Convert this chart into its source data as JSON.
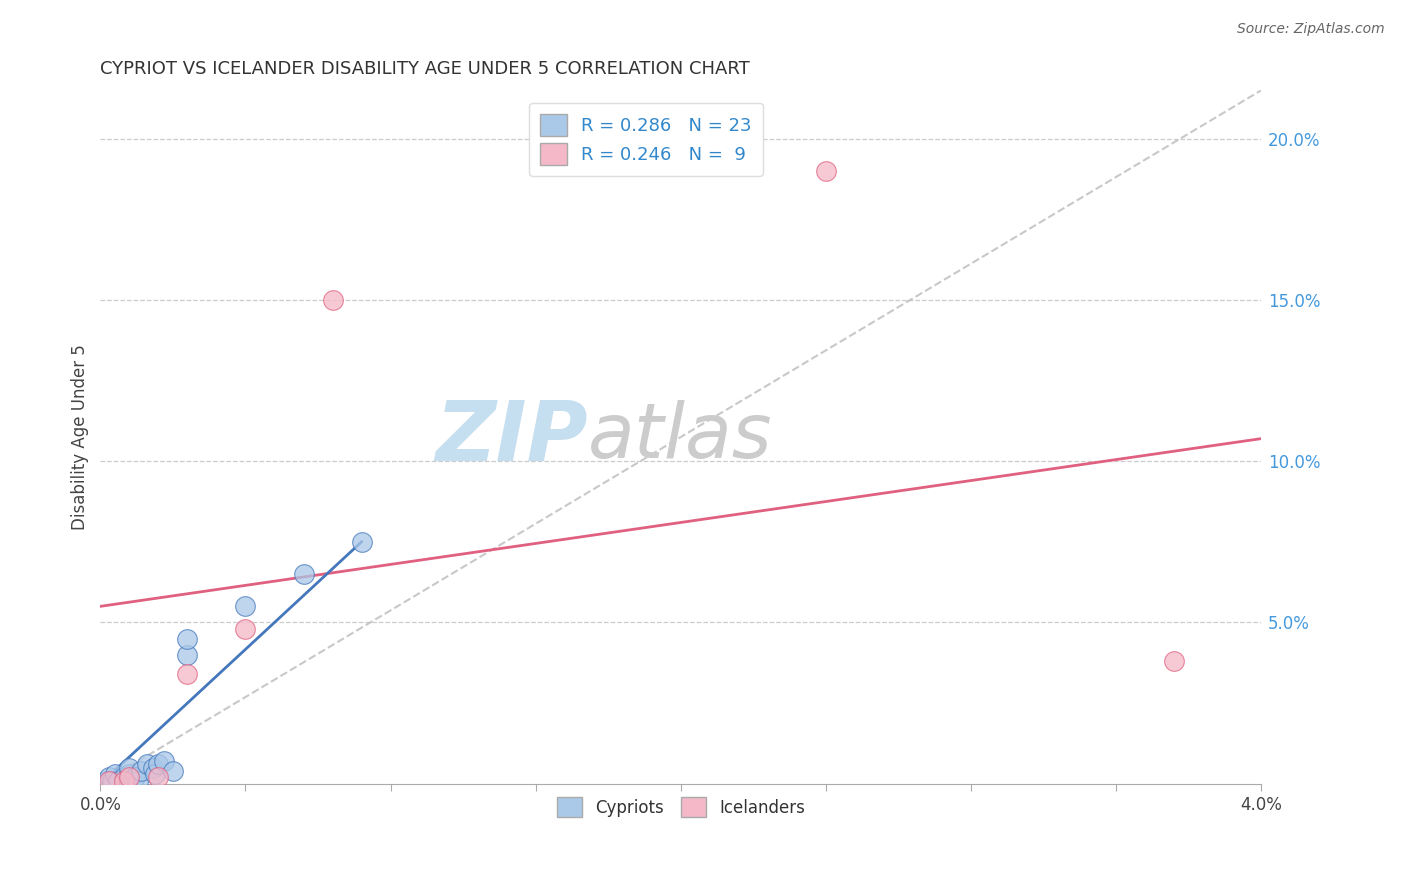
{
  "title": "CYPRIOT VS ICELANDER DISABILITY AGE UNDER 5 CORRELATION CHART",
  "source": "Source: ZipAtlas.com",
  "ylabel": "Disability Age Under 5",
  "y_ticks": [
    0.05,
    0.1,
    0.15,
    0.2
  ],
  "y_tick_labels": [
    "5.0%",
    "10.0%",
    "15.0%",
    "20.0%"
  ],
  "xmin": 0.0,
  "xmax": 0.04,
  "ymin": 0.0,
  "ymax": 0.215,
  "r_cypriot": 0.286,
  "n_cypriot": 23,
  "r_icelander": 0.246,
  "n_icelander": 9,
  "cypriot_color": "#aac8e8",
  "icelander_color": "#f5b8c8",
  "cypriot_line_color": "#4477bb",
  "icelander_line_color": "#e06080",
  "ref_line_color": "#bbbbbb",
  "watermark_zip_color": "#c8dff0",
  "watermark_atlas_color": "#c8c8c8",
  "legend_label_cypriot": "Cypriots",
  "legend_label_icelander": "Icelanders",
  "cypriot_x": [
    0.0002,
    0.0003,
    0.0004,
    0.0005,
    0.0006,
    0.0008,
    0.001,
    0.001,
    0.001,
    0.0012,
    0.0013,
    0.0014,
    0.0016,
    0.0018,
    0.0019,
    0.002,
    0.0022,
    0.0025,
    0.003,
    0.003,
    0.005,
    0.007,
    0.009
  ],
  "cypriot_y": [
    0.001,
    0.002,
    0.001,
    0.003,
    0.001,
    0.002,
    0.001,
    0.003,
    0.005,
    0.002,
    0.001,
    0.004,
    0.006,
    0.005,
    0.003,
    0.006,
    0.007,
    0.004,
    0.04,
    0.045,
    0.055,
    0.065,
    0.075
  ],
  "icelander_x": [
    0.0003,
    0.0008,
    0.001,
    0.002,
    0.003,
    0.005,
    0.008,
    0.025,
    0.037
  ],
  "icelander_y": [
    0.001,
    0.001,
    0.002,
    0.002,
    0.034,
    0.048,
    0.15,
    0.19,
    0.038
  ],
  "cypriot_line_x": [
    0.0,
    0.009
  ],
  "cypriot_line_y": [
    0.0,
    0.075
  ],
  "icelander_line_x": [
    0.0,
    0.04
  ],
  "icelander_line_y": [
    0.055,
    0.107
  ],
  "ref_line_x": [
    0.0,
    0.04
  ],
  "ref_line_y": [
    0.0,
    0.215
  ]
}
